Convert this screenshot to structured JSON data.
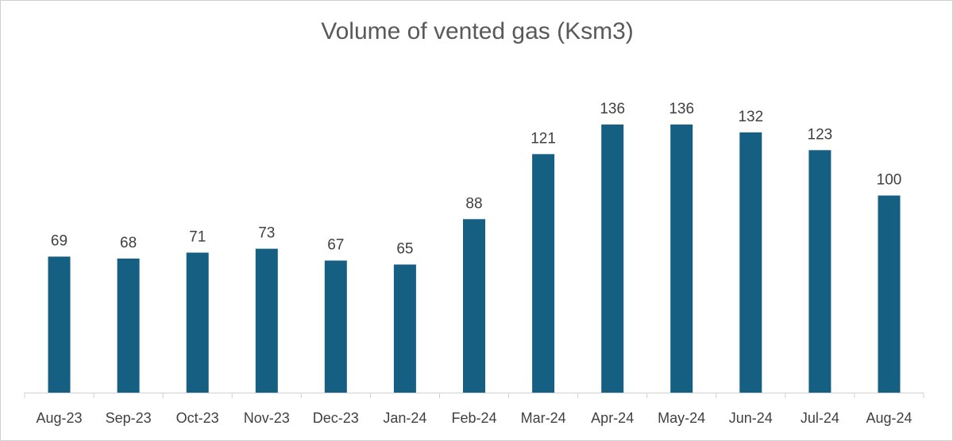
{
  "chart_data": {
    "type": "bar",
    "title": "Volume of vented gas (Ksm3)",
    "categories": [
      "Aug-23",
      "Sep-23",
      "Oct-23",
      "Nov-23",
      "Dec-23",
      "Jan-24",
      "Feb-24",
      "Mar-24",
      "Apr-24",
      "May-24",
      "Jun-24",
      "Jul-24",
      "Aug-24"
    ],
    "values": [
      69,
      68,
      71,
      73,
      67,
      65,
      88,
      121,
      136,
      136,
      132,
      123,
      100
    ],
    "xlabel": "",
    "ylabel": "",
    "ylim": [
      0,
      136
    ],
    "grid": false,
    "data_labels": true,
    "bar_color": "#155f83"
  }
}
